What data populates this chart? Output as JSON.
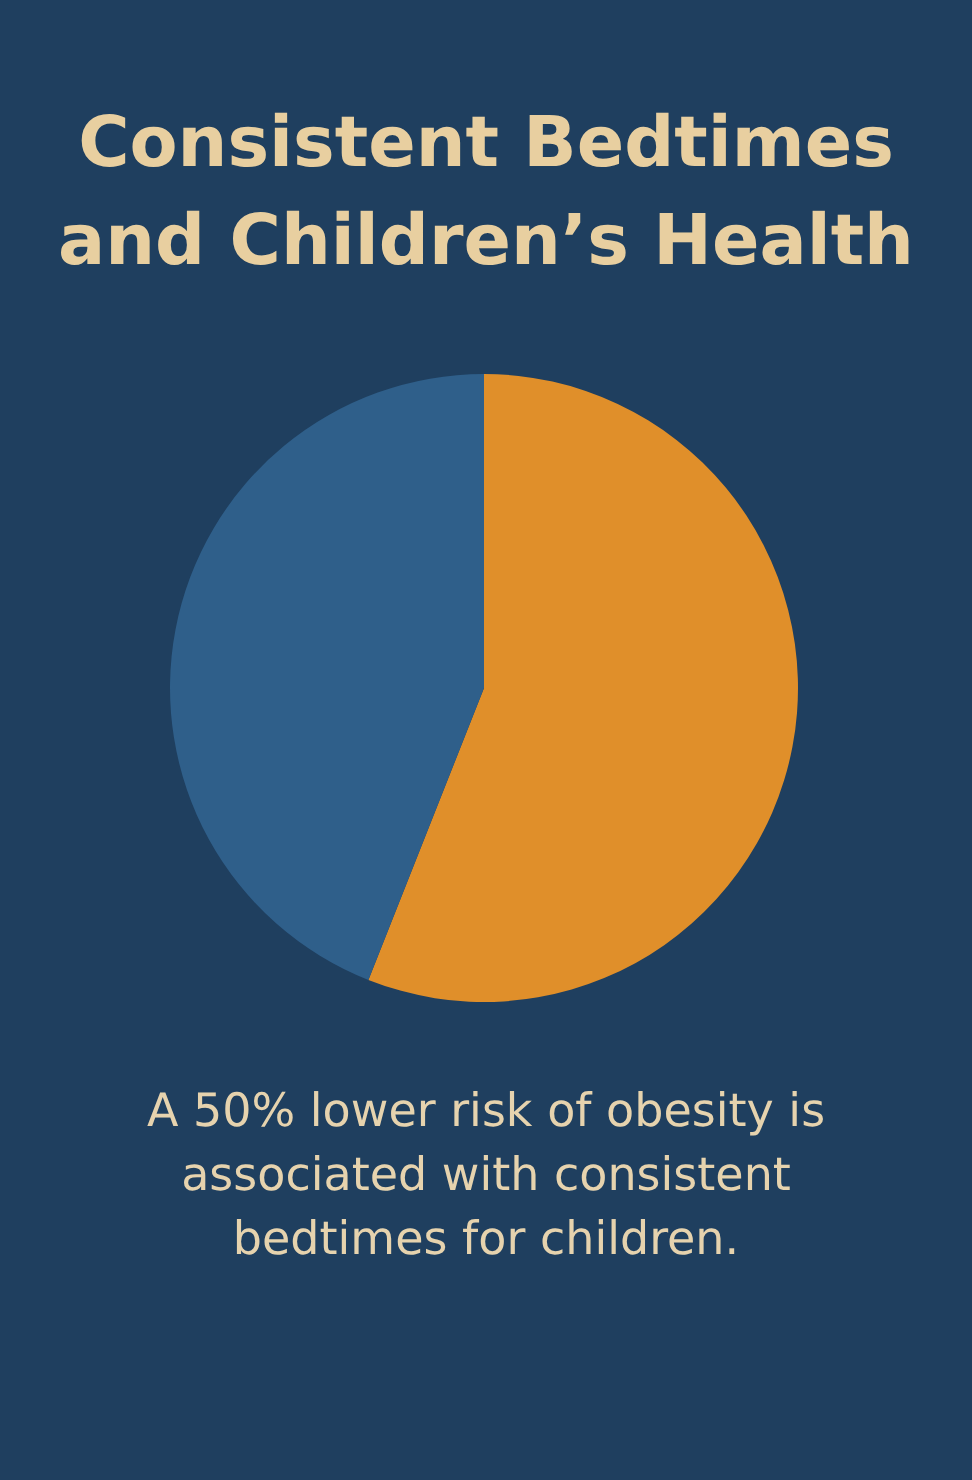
{
  "chart_data": {
    "type": "pie",
    "title": "Consistent Bedtimes and Children’s Health",
    "categories": [
      null,
      null
    ],
    "values": [
      56,
      44
    ],
    "colors": [
      "#e08f2a",
      "#2f5f8a"
    ],
    "annotations": [
      "A 50% lower risk of obesity is associated with consistent bedtimes for children."
    ]
  }
}
